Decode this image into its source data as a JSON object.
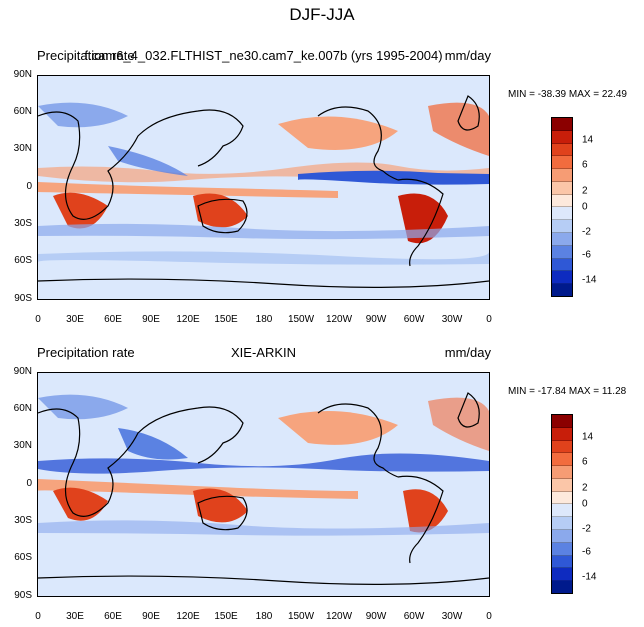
{
  "title": "DJF-JJA",
  "panels": [
    {
      "left_label": "Precipitation rate",
      "center_label": "f.cam6_4_032.FLTHIST_ne30.cam7_ke.007b (yrs 1995-2004)",
      "right_label": "mm/day",
      "min_max": "MIN = -38.39 MAX =  22.49"
    },
    {
      "left_label": "Precipitation rate",
      "center_label": "XIE-ARKIN",
      "right_label": "mm/day",
      "min_max": "MIN = -17.84 MAX =  11.28"
    }
  ],
  "lat_ticks": [
    "90N",
    "60N",
    "30N",
    "0",
    "30S",
    "60S",
    "90S"
  ],
  "lon_ticks": [
    "0",
    "30E",
    "60E",
    "90E",
    "120E",
    "150E",
    "180",
    "150W",
    "120W",
    "90W",
    "60W",
    "30W",
    "0"
  ],
  "colorbar": {
    "colors": [
      "#8b0000",
      "#c81e0a",
      "#e0421c",
      "#f26c3e",
      "#f69c74",
      "#fbc6a8",
      "#fde9dc",
      "#dde8fb",
      "#b6cdf5",
      "#8ba9ec",
      "#5b82e2",
      "#2f58d6",
      "#0e2bc0",
      "#001a8c"
    ],
    "labels": [
      "14",
      "6",
      "2",
      "0",
      "-2",
      "-6",
      "-14"
    ]
  },
  "map_colors": {
    "ocean_base": "#dbe8fc",
    "positive": "#f6a47e",
    "strong_positive": "#e0421c",
    "negative": "#8ba9ec",
    "strong_negative": "#2f58d6",
    "coast": "#000000"
  }
}
